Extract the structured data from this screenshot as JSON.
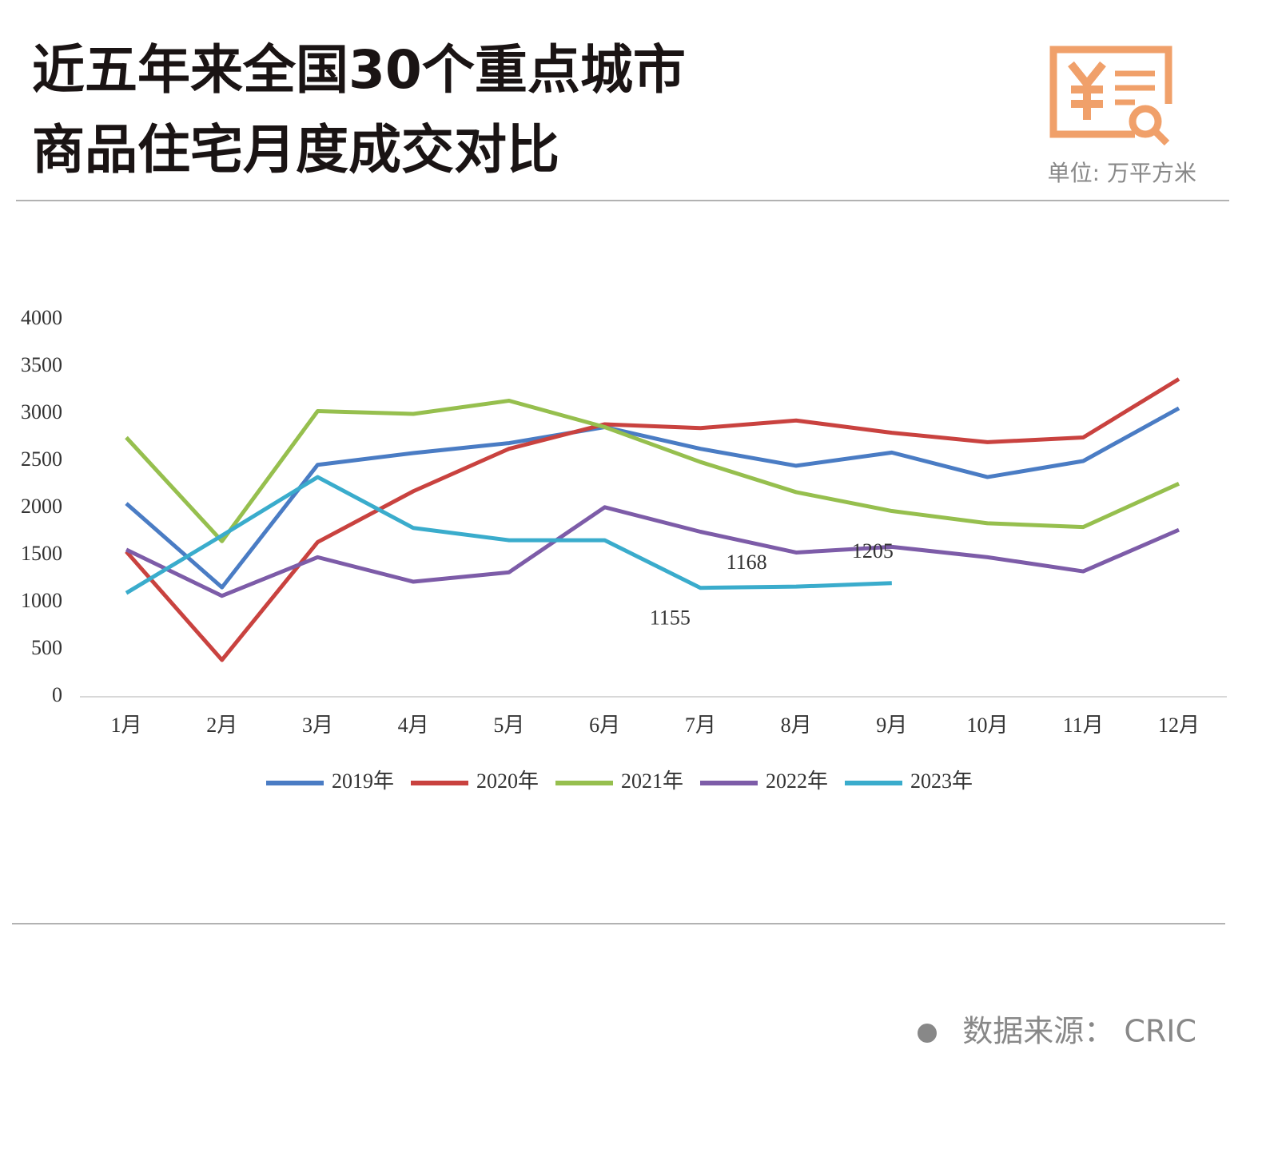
{
  "chart_data": {
    "type": "line",
    "title": [
      "近五年来全国30个重点城市",
      "商品住宅月度成交对比"
    ],
    "unit": "单位: 万平方米",
    "source": "数据来源： CRIC",
    "categories": [
      "1月",
      "2月",
      "3月",
      "4月",
      "5月",
      "6月",
      "7月",
      "8月",
      "9月",
      "10月",
      "11月",
      "12月"
    ],
    "series": [
      {
        "name": "2019年",
        "color": "#4a7cc4",
        "values": [
          2050,
          1160,
          2460,
          2585,
          2690,
          2860,
          2630,
          2450,
          2590,
          2330,
          2500,
          3060
        ]
      },
      {
        "name": "2020年",
        "color": "#c9423f",
        "values": [
          1540,
          390,
          1640,
          2180,
          2630,
          2890,
          2850,
          2930,
          2800,
          2700,
          2750,
          3370
        ]
      },
      {
        "name": "2021年",
        "color": "#96bf4e",
        "values": [
          2750,
          1650,
          3030,
          3000,
          3140,
          2860,
          2490,
          2170,
          1970,
          1840,
          1800,
          2260
        ]
      },
      {
        "name": "2022年",
        "color": "#7d5ca8",
        "values": [
          1560,
          1070,
          1480,
          1220,
          1320,
          2010,
          1750,
          1530,
          1590,
          1480,
          1330,
          1770
        ]
      },
      {
        "name": "2023年",
        "color": "#3aaccc",
        "values": [
          1100,
          1710,
          2330,
          1790,
          1660,
          1660,
          1155,
          1168,
          1205,
          null,
          null,
          null
        ],
        "value_labels": [
          null,
          null,
          null,
          null,
          null,
          null,
          "1155",
          "1168",
          "1205",
          null,
          null,
          null
        ]
      }
    ],
    "ylim": [
      0,
      4000
    ],
    "yticks": [
      0,
      500,
      1000,
      1500,
      2000,
      2500,
      3000,
      3500,
      4000
    ],
    "grid": false,
    "legend": "bottom"
  }
}
